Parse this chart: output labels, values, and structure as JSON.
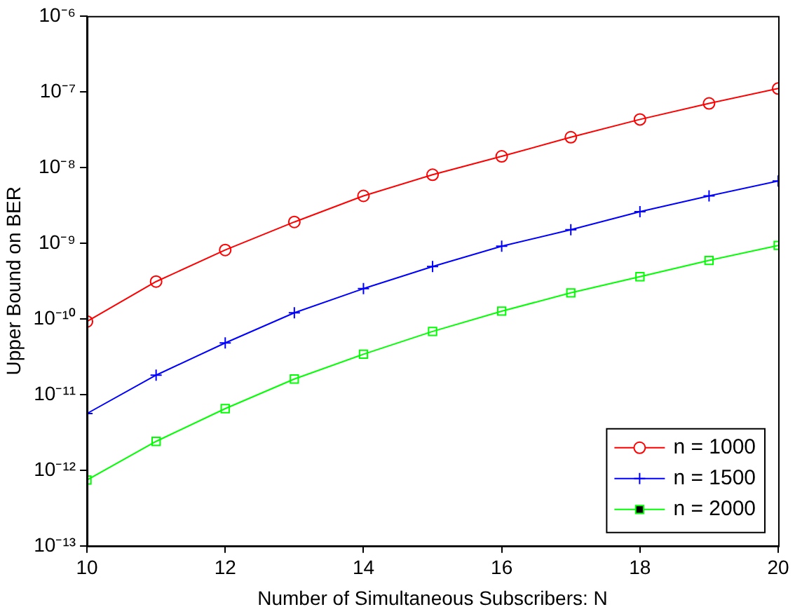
{
  "chart_data": {
    "type": "line",
    "xlabel": "Number of Simultaneous Subscribers: N",
    "ylabel": "Upper Bound on BER",
    "x": [
      10,
      11,
      12,
      13,
      14,
      15,
      16,
      17,
      18,
      19,
      20
    ],
    "series": [
      {
        "name": "n = 1000",
        "color": "#ff0000",
        "marker": "circle",
        "values": [
          9.2e-11,
          3.1e-10,
          8.1e-10,
          1.9e-09,
          4.2e-09,
          8e-09,
          1.4e-08,
          2.5e-08,
          4.3e-08,
          7e-08,
          1.1e-07
        ]
      },
      {
        "name": "n = 1500",
        "color": "#0000ff",
        "marker": "cross",
        "values": [
          5.6e-12,
          1.8e-11,
          4.8e-11,
          1.2e-10,
          2.5e-10,
          4.9e-10,
          9.1e-10,
          1.5e-09,
          2.6e-09,
          4.2e-09,
          6.6e-09
        ]
      },
      {
        "name": "n = 2000",
        "color": "#00ff00",
        "marker": "square",
        "values": [
          7.4e-13,
          2.4e-12,
          6.5e-12,
          1.6e-11,
          3.4e-11,
          6.8e-11,
          1.26e-10,
          2.2e-10,
          3.6e-10,
          5.9e-10,
          9.3e-10
        ]
      }
    ],
    "xlim": [
      10,
      20
    ],
    "xticks": [
      10,
      12,
      14,
      16,
      18,
      20
    ],
    "ylim": [
      1e-13,
      1e-06
    ],
    "yticks": [
      {
        "value": 1e-13,
        "label": "10⁻¹³"
      },
      {
        "value": 1e-12,
        "label": "10⁻¹²"
      },
      {
        "value": 1e-11,
        "label": "10⁻¹¹"
      },
      {
        "value": 1e-10,
        "label": "10⁻¹⁰"
      },
      {
        "value": 1e-09,
        "label": "10⁻⁹"
      },
      {
        "value": 1e-08,
        "label": "10⁻⁸"
      },
      {
        "value": 1e-07,
        "label": "10⁻⁷"
      },
      {
        "value": 1e-06,
        "label": "10⁻⁶"
      }
    ],
    "log": "y",
    "grid": false,
    "legend": "bottom right",
    "line_style": "solid"
  }
}
